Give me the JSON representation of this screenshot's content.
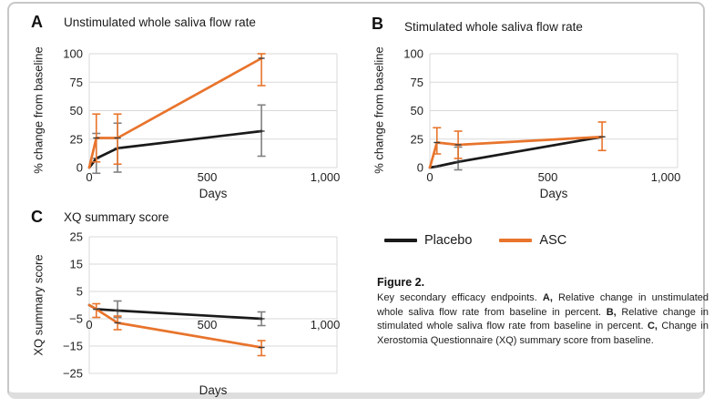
{
  "figure": {
    "caption_title": "Figure 2.",
    "caption_segments": [
      {
        "text": "Key secondary efficacy endpoints. ",
        "bold": false
      },
      {
        "text": "A,",
        "bold": true
      },
      {
        "text": " Relative change in unstimulated whole saliva flow rate from baseline in percent. ",
        "bold": false
      },
      {
        "text": "B,",
        "bold": true
      },
      {
        "text": " Relative change in stimulated whole saliva flow rate from baseline in percent. ",
        "bold": false
      },
      {
        "text": "C,",
        "bold": true
      },
      {
        "text": " Change in Xerostomia Questionnaire (XQ) summary score from baseline.",
        "bold": false
      }
    ]
  },
  "legend": {
    "items": [
      {
        "label": "Placebo",
        "color": "#1a1a1a"
      },
      {
        "label": "ASC",
        "color": "#e8742c"
      }
    ]
  },
  "colors": {
    "gridline": "#d9d9d9",
    "placebo_line": "#1a1a1a",
    "placebo_error": "#808080",
    "asc_line": "#e8742c",
    "marker": "#3d3d3d"
  },
  "chart_data": [
    {
      "id": "A",
      "panel_label": "A",
      "title": "Unstimulated whole saliva flow rate",
      "type": "line",
      "xlabel": "Days",
      "ylabel": "% change from baseline",
      "xlim": [
        0,
        1050
      ],
      "ylim": [
        0,
        100
      ],
      "xticks": [
        0,
        500,
        1000
      ],
      "xtick_labels": [
        "0",
        "500",
        "1,000"
      ],
      "yticks": [
        0,
        25,
        50,
        75,
        100
      ],
      "ytick_labels": [
        "0",
        "25",
        "50",
        "75",
        "100"
      ],
      "grid": true,
      "x_axis_labels_at_zero": false,
      "series": [
        {
          "name": "Placebo",
          "color": "#1a1a1a",
          "err_color": "#808080",
          "points": [
            {
              "x": 0,
              "y": 0,
              "lo": null,
              "hi": null
            },
            {
              "x": 30,
              "y": 8,
              "lo": -5,
              "hi": 30
            },
            {
              "x": 120,
              "y": 17,
              "lo": -4,
              "hi": 39
            },
            {
              "x": 730,
              "y": 32,
              "lo": 10,
              "hi": 55
            }
          ]
        },
        {
          "name": "ASC",
          "color": "#e8742c",
          "err_color": "#e8742c",
          "points": [
            {
              "x": 0,
              "y": 0,
              "lo": null,
              "hi": null
            },
            {
              "x": 30,
              "y": 26,
              "lo": 5,
              "hi": 47
            },
            {
              "x": 120,
              "y": 26,
              "lo": 3,
              "hi": 47
            },
            {
              "x": 730,
              "y": 96,
              "lo": 72,
              "hi": 100
            }
          ]
        }
      ]
    },
    {
      "id": "B",
      "panel_label": "B",
      "title": "Stimulated whole saliva flow rate",
      "type": "line",
      "xlabel": "Days",
      "ylabel": "% change from baseline",
      "xlim": [
        0,
        1050
      ],
      "ylim": [
        0,
        100
      ],
      "xticks": [
        0,
        500,
        1000
      ],
      "xtick_labels": [
        "0",
        "500",
        "1,000"
      ],
      "yticks": [
        0,
        25,
        50,
        75,
        100
      ],
      "ytick_labels": [
        "0",
        "25",
        "50",
        "75",
        "100"
      ],
      "grid": true,
      "x_axis_labels_at_zero": false,
      "series": [
        {
          "name": "Placebo",
          "color": "#1a1a1a",
          "err_color": "#808080",
          "points": [
            {
              "x": 0,
              "y": 0,
              "lo": null,
              "hi": null
            },
            {
              "x": 30,
              "y": 1,
              "lo": null,
              "hi": null
            },
            {
              "x": 120,
              "y": 5,
              "lo": -2,
              "hi": 18
            },
            {
              "x": 730,
              "y": 27,
              "lo": null,
              "hi": null
            }
          ]
        },
        {
          "name": "ASC",
          "color": "#e8742c",
          "err_color": "#e8742c",
          "points": [
            {
              "x": 0,
              "y": 0,
              "lo": null,
              "hi": null
            },
            {
              "x": 30,
              "y": 22,
              "lo": 12,
              "hi": 35
            },
            {
              "x": 120,
              "y": 20,
              "lo": 8,
              "hi": 32
            },
            {
              "x": 730,
              "y": 27,
              "lo": 15,
              "hi": 40
            }
          ]
        }
      ]
    },
    {
      "id": "C",
      "panel_label": "C",
      "title": "XQ summary score",
      "type": "line",
      "xlabel": "Days",
      "ylabel": "XQ summary score",
      "xlim": [
        0,
        1050
      ],
      "ylim": [
        -25,
        25
      ],
      "xticks": [
        0,
        500,
        1000
      ],
      "xtick_labels": [
        "0",
        "500",
        "1,000"
      ],
      "yticks": [
        25,
        15,
        5,
        -5,
        -15,
        -25
      ],
      "ytick_labels": [
        "25",
        "15",
        "5",
        "−5",
        "−15",
        "−25"
      ],
      "grid": true,
      "x_axis_labels_at_zero": true,
      "series": [
        {
          "name": "Placebo",
          "color": "#1a1a1a",
          "err_color": "#808080",
          "points": [
            {
              "x": 0,
              "y": 0,
              "lo": null,
              "hi": null
            },
            {
              "x": 30,
              "y": -1.5,
              "lo": null,
              "hi": null
            },
            {
              "x": 120,
              "y": -2,
              "lo": -4.5,
              "hi": 1.5
            },
            {
              "x": 730,
              "y": -5,
              "lo": -7.5,
              "hi": -2.5
            }
          ]
        },
        {
          "name": "ASC",
          "color": "#e8742c",
          "err_color": "#e8742c",
          "points": [
            {
              "x": 0,
              "y": 0,
              "lo": null,
              "hi": null
            },
            {
              "x": 30,
              "y": -1.5,
              "lo": -4.5,
              "hi": 0.5
            },
            {
              "x": 120,
              "y": -6.5,
              "lo": -9,
              "hi": -4
            },
            {
              "x": 730,
              "y": -15.5,
              "lo": -18.5,
              "hi": -13
            }
          ]
        }
      ]
    }
  ]
}
